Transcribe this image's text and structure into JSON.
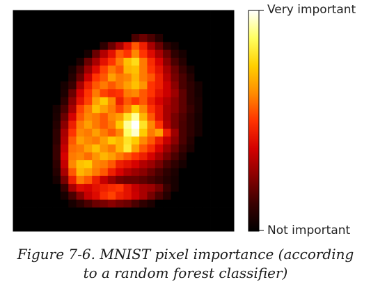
{
  "chart_data": {
    "type": "heatmap",
    "title": "",
    "xlabel": "",
    "ylabel": "",
    "rows": 28,
    "cols": 28,
    "value_range": [
      0,
      1
    ],
    "colormap": "hot",
    "colormap_stops": [
      "#000000",
      "#3a0000",
      "#8a0000",
      "#d40000",
      "#ff3300",
      "#ff8c00",
      "#ffd000",
      "#ffff60",
      "#ffffff"
    ],
    "colorbar": {
      "ticks": [
        {
          "value": 1,
          "label": "Very important"
        },
        {
          "value": 0,
          "label": "Not important"
        }
      ]
    },
    "values": [
      [
        0,
        0,
        0,
        0,
        0,
        0,
        0,
        0,
        0,
        0,
        0,
        0,
        0,
        0,
        0,
        0,
        0,
        0,
        0,
        0,
        0,
        0,
        0,
        0,
        0,
        0,
        0,
        0
      ],
      [
        0,
        0,
        0,
        0,
        0,
        0,
        0,
        0,
        0,
        0,
        0,
        0,
        0,
        0,
        0,
        0,
        0,
        0,
        0,
        0,
        0,
        0,
        0,
        0,
        0,
        0,
        0,
        0
      ],
      [
        0,
        0,
        0,
        0,
        0,
        0,
        0,
        0,
        0,
        0,
        0,
        0,
        0,
        0,
        0,
        0,
        0,
        0,
        0,
        0,
        0,
        0,
        0,
        0,
        0,
        0,
        0,
        0
      ],
      [
        0,
        0,
        0,
        0,
        0,
        0,
        0,
        0,
        0,
        0,
        0,
        0,
        0,
        0,
        0,
        0.15,
        0.2,
        0.15,
        0.08,
        0,
        0,
        0,
        0,
        0,
        0,
        0,
        0,
        0
      ],
      [
        0,
        0,
        0,
        0,
        0,
        0,
        0,
        0,
        0,
        0,
        0,
        0.1,
        0.2,
        0.3,
        0.42,
        0.55,
        0.45,
        0.3,
        0.2,
        0.1,
        0.05,
        0,
        0,
        0,
        0,
        0,
        0,
        0
      ],
      [
        0,
        0,
        0,
        0,
        0,
        0,
        0,
        0,
        0,
        0.05,
        0.2,
        0.32,
        0.42,
        0.55,
        0.5,
        0.62,
        0.5,
        0.4,
        0.3,
        0.2,
        0.1,
        0.05,
        0,
        0,
        0,
        0,
        0,
        0
      ],
      [
        0,
        0,
        0,
        0,
        0,
        0,
        0,
        0,
        0.06,
        0.2,
        0.3,
        0.42,
        0.5,
        0.6,
        0.72,
        0.78,
        0.6,
        0.48,
        0.38,
        0.25,
        0.15,
        0.08,
        0,
        0,
        0,
        0,
        0,
        0
      ],
      [
        0,
        0,
        0,
        0,
        0,
        0,
        0,
        0.05,
        0.15,
        0.28,
        0.4,
        0.52,
        0.6,
        0.55,
        0.7,
        0.72,
        0.6,
        0.5,
        0.42,
        0.3,
        0.2,
        0.12,
        0.05,
        0,
        0,
        0,
        0,
        0
      ],
      [
        0,
        0,
        0,
        0,
        0,
        0,
        0,
        0.08,
        0.2,
        0.36,
        0.5,
        0.55,
        0.66,
        0.6,
        0.62,
        0.7,
        0.6,
        0.55,
        0.45,
        0.33,
        0.22,
        0.15,
        0.08,
        0,
        0,
        0,
        0,
        0
      ],
      [
        0,
        0,
        0,
        0,
        0,
        0,
        0.05,
        0.12,
        0.3,
        0.45,
        0.55,
        0.6,
        0.55,
        0.6,
        0.66,
        0.72,
        0.64,
        0.5,
        0.45,
        0.36,
        0.25,
        0.15,
        0.1,
        0.05,
        0,
        0,
        0,
        0
      ],
      [
        0,
        0,
        0,
        0,
        0,
        0,
        0.06,
        0.2,
        0.38,
        0.5,
        0.6,
        0.52,
        0.48,
        0.5,
        0.6,
        0.62,
        0.55,
        0.5,
        0.42,
        0.36,
        0.28,
        0.18,
        0.1,
        0.05,
        0,
        0,
        0,
        0
      ],
      [
        0,
        0,
        0,
        0,
        0,
        0,
        0.1,
        0.25,
        0.42,
        0.52,
        0.66,
        0.74,
        0.62,
        0.45,
        0.55,
        0.5,
        0.55,
        0.45,
        0.38,
        0.32,
        0.25,
        0.18,
        0.1,
        0.06,
        0,
        0,
        0,
        0
      ],
      [
        0,
        0,
        0,
        0,
        0,
        0.05,
        0.15,
        0.3,
        0.52,
        0.6,
        0.72,
        0.66,
        0.6,
        0.52,
        0.6,
        0.74,
        0.62,
        0.5,
        0.42,
        0.3,
        0.25,
        0.18,
        0.12,
        0.06,
        0,
        0,
        0,
        0
      ],
      [
        0,
        0,
        0,
        0,
        0,
        0.06,
        0.2,
        0.38,
        0.55,
        0.62,
        0.6,
        0.55,
        0.62,
        0.66,
        0.8,
        0.92,
        0.7,
        0.55,
        0.42,
        0.3,
        0.22,
        0.16,
        0.1,
        0.05,
        0,
        0,
        0,
        0
      ],
      [
        0,
        0,
        0,
        0,
        0,
        0.08,
        0.25,
        0.45,
        0.6,
        0.66,
        0.6,
        0.55,
        0.6,
        0.74,
        0.92,
        1.0,
        0.8,
        0.62,
        0.5,
        0.32,
        0.22,
        0.15,
        0.1,
        0.05,
        0,
        0,
        0,
        0
      ],
      [
        0,
        0,
        0,
        0,
        0,
        0.1,
        0.3,
        0.5,
        0.62,
        0.6,
        0.66,
        0.6,
        0.55,
        0.62,
        0.88,
        0.96,
        0.74,
        0.6,
        0.66,
        0.45,
        0.28,
        0.15,
        0.1,
        0.05,
        0,
        0,
        0,
        0
      ],
      [
        0,
        0,
        0,
        0,
        0,
        0.1,
        0.32,
        0.55,
        0.66,
        0.62,
        0.6,
        0.66,
        0.74,
        0.7,
        0.8,
        0.74,
        0.62,
        0.55,
        0.45,
        0.35,
        0.25,
        0.15,
        0.08,
        0,
        0,
        0,
        0,
        0
      ],
      [
        0,
        0,
        0,
        0,
        0,
        0.12,
        0.35,
        0.58,
        0.6,
        0.66,
        0.72,
        0.64,
        0.6,
        0.7,
        0.82,
        0.66,
        0.55,
        0.48,
        0.38,
        0.28,
        0.2,
        0.12,
        0.06,
        0,
        0,
        0,
        0,
        0
      ],
      [
        0,
        0,
        0,
        0,
        0,
        0.12,
        0.38,
        0.6,
        0.62,
        0.58,
        0.64,
        0.7,
        0.66,
        0.6,
        0.55,
        0.5,
        0.45,
        0.38,
        0.3,
        0.22,
        0.15,
        0.08,
        0,
        0,
        0,
        0,
        0,
        0
      ],
      [
        0,
        0,
        0,
        0,
        0,
        0.1,
        0.35,
        0.62,
        0.72,
        0.74,
        0.62,
        0.6,
        0.55,
        0.45,
        0.42,
        0.38,
        0.32,
        0.28,
        0.22,
        0.15,
        0.1,
        0.05,
        0,
        0,
        0,
        0,
        0,
        0
      ],
      [
        0,
        0,
        0,
        0,
        0,
        0.08,
        0.3,
        0.55,
        0.7,
        0.66,
        0.6,
        0.55,
        0.45,
        0.38,
        0.32,
        0.28,
        0.25,
        0.2,
        0.15,
        0.1,
        0.06,
        0,
        0,
        0,
        0,
        0,
        0,
        0
      ],
      [
        0,
        0,
        0,
        0,
        0,
        0.05,
        0.22,
        0.45,
        0.6,
        0.55,
        0.45,
        0.35,
        0.28,
        0.22,
        0.2,
        0.2,
        0.18,
        0.15,
        0.12,
        0.08,
        0.05,
        0,
        0,
        0,
        0,
        0,
        0,
        0
      ],
      [
        0,
        0,
        0,
        0,
        0,
        0,
        0.12,
        0.3,
        0.4,
        0.38,
        0.42,
        0.45,
        0.48,
        0.5,
        0.42,
        0.35,
        0.3,
        0.28,
        0.22,
        0.12,
        0.05,
        0,
        0,
        0,
        0,
        0,
        0,
        0
      ],
      [
        0,
        0,
        0,
        0,
        0,
        0,
        0.05,
        0.15,
        0.25,
        0.35,
        0.4,
        0.48,
        0.52,
        0.45,
        0.42,
        0.36,
        0.3,
        0.22,
        0.15,
        0.08,
        0,
        0,
        0,
        0,
        0,
        0,
        0,
        0
      ],
      [
        0,
        0,
        0,
        0,
        0,
        0,
        0,
        0.05,
        0.1,
        0.15,
        0.2,
        0.22,
        0.25,
        0.22,
        0.2,
        0.15,
        0.1,
        0.06,
        0,
        0,
        0,
        0,
        0,
        0,
        0,
        0,
        0,
        0
      ],
      [
        0,
        0,
        0,
        0,
        0,
        0,
        0,
        0,
        0,
        0,
        0,
        0,
        0,
        0,
        0,
        0,
        0,
        0,
        0,
        0,
        0,
        0,
        0,
        0,
        0,
        0,
        0,
        0
      ],
      [
        0,
        0,
        0,
        0,
        0,
        0,
        0,
        0,
        0,
        0,
        0,
        0,
        0,
        0,
        0,
        0,
        0,
        0,
        0,
        0,
        0,
        0,
        0,
        0,
        0,
        0,
        0,
        0
      ],
      [
        0,
        0,
        0,
        0,
        0,
        0,
        0,
        0,
        0,
        0,
        0,
        0,
        0,
        0,
        0,
        0,
        0,
        0,
        0,
        0,
        0,
        0,
        0,
        0,
        0,
        0,
        0,
        0
      ]
    ]
  },
  "caption": {
    "line1": "Figure 7-6. MNIST pixel importance (according",
    "line2": "to a random forest classifier)"
  }
}
